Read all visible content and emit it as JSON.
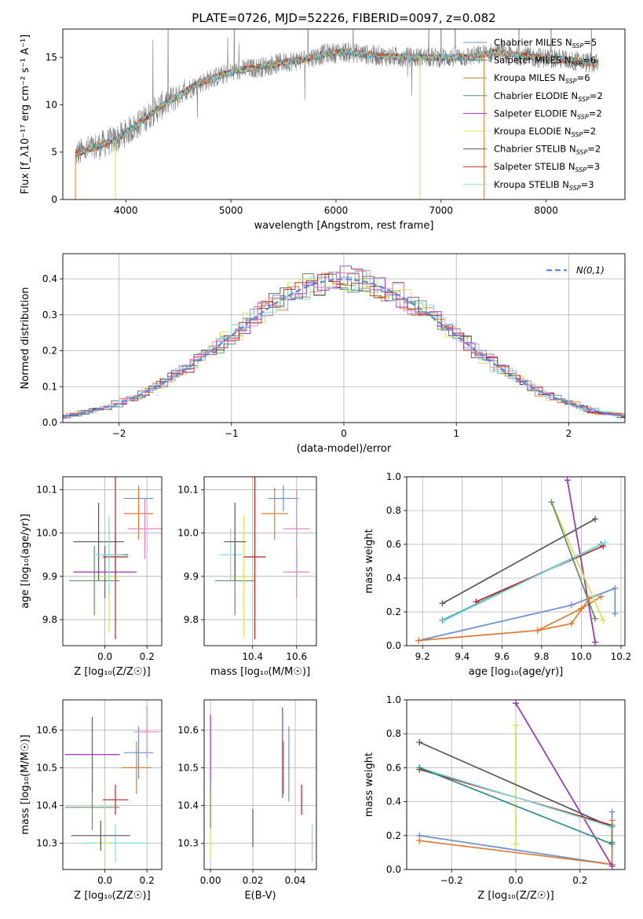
{
  "figure": {
    "title": "PLATE=0726, MJD=52226, FIBERID=0097, z=0.082"
  },
  "models": [
    {
      "name": "Chabrier MILES",
      "nssp": 5,
      "color": "#6b8fd6"
    },
    {
      "name": "Salpeter MILES",
      "nssp": 6,
      "color": "#2e8b8b"
    },
    {
      "name": "Kroupa MILES",
      "nssp": 6,
      "color": "#e07b2e"
    },
    {
      "name": "Chabrier ELODIE",
      "nssp": 2,
      "color": "#5f8f5f"
    },
    {
      "name": "Salpeter ELODIE",
      "nssp": 2,
      "color": "#9933bb"
    },
    {
      "name": "Kroupa ELODIE",
      "nssp": 2,
      "color": "#d4e05a"
    },
    {
      "name": "Chabrier STELIB",
      "nssp": 2,
      "color": "#555555"
    },
    {
      "name": "Salpeter STELIB",
      "nssp": 3,
      "color": "#b22222"
    },
    {
      "name": "Kroupa STELIB",
      "nssp": 3,
      "color": "#7fdde0"
    }
  ],
  "chart_data": [
    {
      "id": "spectrum",
      "type": "line",
      "title": "PLATE=0726, MJD=52226, FIBERID=0097, z=0.082",
      "xlabel": "wavelength [Angstrom, rest frame]",
      "ylabel": "Flux [f_λ10⁻¹⁷ erg cm⁻² s⁻¹ A⁻¹]",
      "xlim": [
        3400,
        8750
      ],
      "ylim": [
        0,
        18
      ],
      "xticks": [
        4000,
        5000,
        6000,
        7000,
        8000
      ],
      "yticks": [
        0,
        5,
        10,
        15
      ],
      "grid": false,
      "legend": "top-right",
      "continuum": {
        "x": [
          3520,
          3700,
          3900,
          4100,
          4300,
          4500,
          4700,
          4900,
          5100,
          5300,
          5500,
          5700,
          5900,
          6100,
          6300,
          6500,
          6700,
          6900,
          7100,
          7300,
          7500,
          7700,
          7900,
          8100,
          8300,
          8500
        ],
        "y": [
          4.8,
          5.5,
          6.3,
          7.8,
          9.6,
          11.0,
          12.3,
          13.1,
          13.7,
          14.0,
          14.5,
          14.8,
          15.4,
          15.6,
          15.3,
          15.1,
          15.0,
          15.0,
          15.0,
          15.1,
          15.5,
          15.3,
          15.0,
          14.9,
          14.6,
          14.3
        ]
      }
    },
    {
      "id": "residuals",
      "type": "histogram",
      "xlabel": "(data-model)/error",
      "ylabel": "Normed distribution",
      "xlim": [
        -2.5,
        2.5
      ],
      "ylim": [
        0,
        0.47
      ],
      "xticks": [
        -2,
        -1,
        0,
        1,
        2
      ],
      "yticks": [
        0.0,
        0.1,
        0.2,
        0.3,
        0.4
      ],
      "grid": true,
      "legend": "top-right",
      "legend_label": "N(0,1)",
      "bin_edges": [
        -2.5,
        2.5
      ],
      "bin_width": 0.1,
      "normal_curve_color": "#5b86d9"
    },
    {
      "id": "age-vs-Z",
      "type": "errorbar",
      "xlabel": "Z [log₁₀(Z/Z☉)]",
      "ylabel": "age  [log₁₀(age/yr)]",
      "xlim": [
        -0.2,
        0.27
      ],
      "ylim": [
        9.74,
        10.13
      ],
      "xticks": [
        0.0,
        0.2
      ],
      "yticks": [
        9.8,
        9.9,
        10.0,
        10.1
      ],
      "grid": true,
      "points": [
        {
          "x": 0.16,
          "y": 10.08,
          "xerr": 0.07,
          "yerr": 0.03,
          "model": 0
        },
        {
          "x": 0.05,
          "y": 9.95,
          "xerr": 0.06,
          "yerr": 0.05,
          "model": 1
        },
        {
          "x": 0.16,
          "y": 10.045,
          "xerr": 0.07,
          "yerr": 0.06,
          "model": 2
        },
        {
          "x": -0.05,
          "y": 9.89,
          "xerr": 0.12,
          "yerr": 0.08,
          "model": 3
        },
        {
          "x": 0.0,
          "y": 9.91,
          "xerr": 0.15,
          "yerr": 0.06,
          "model": 4
        },
        {
          "x": 0.02,
          "y": 9.9,
          "xerr": 0.06,
          "yerr": 0.13,
          "model": 5
        },
        {
          "x": -0.03,
          "y": 9.98,
          "xerr": 0.12,
          "yerr": 0.09,
          "model": 6
        },
        {
          "x": 0.05,
          "y": 9.945,
          "xerr": 0.06,
          "yerr": 0.19,
          "model": 7
        },
        {
          "x": 0.02,
          "y": 9.95,
          "xerr": 0.07,
          "yerr": 0.09,
          "model": 8
        },
        {
          "x": 0.19,
          "y": 10.01,
          "xerr": 0.08,
          "yerr": 0.07,
          "model": 4
        }
      ]
    },
    {
      "id": "age-vs-mass",
      "type": "errorbar",
      "xlabel": "mass [log₁₀(M/M☉)]",
      "ylabel": "",
      "xlim": [
        10.18,
        10.69
      ],
      "ylim": [
        9.74,
        10.13
      ],
      "xticks": [
        10.4,
        10.6
      ],
      "yticks": [
        9.8,
        9.9,
        10.0,
        10.1
      ],
      "grid": true,
      "points": [
        {
          "x": 10.54,
          "y": 10.08,
          "xerr": 0.07,
          "yerr": 0.03,
          "model": 0
        },
        {
          "x": 10.3,
          "y": 9.95,
          "xerr": 0.05,
          "yerr": 0.06,
          "model": 8
        },
        {
          "x": 10.5,
          "y": 10.045,
          "xerr": 0.06,
          "yerr": 0.06,
          "model": 2
        },
        {
          "x": 10.32,
          "y": 9.89,
          "xerr": 0.09,
          "yerr": 0.08,
          "model": 3
        },
        {
          "x": 10.6,
          "y": 9.91,
          "xerr": 0.06,
          "yerr": 0.06,
          "model": 4
        },
        {
          "x": 10.36,
          "y": 9.9,
          "xerr": 0.05,
          "yerr": 0.14,
          "model": 5
        },
        {
          "x": 10.32,
          "y": 9.98,
          "xerr": 0.05,
          "yerr": 0.09,
          "model": 6
        },
        {
          "x": 10.41,
          "y": 9.945,
          "xerr": 0.05,
          "yerr": 0.19,
          "model": 7
        },
        {
          "x": 10.6,
          "y": 10.01,
          "xerr": 0.06,
          "yerr": 0.09,
          "model": 4
        }
      ]
    },
    {
      "id": "weight-vs-age",
      "type": "line",
      "xlabel": "age  [log₁₀(age/yr)]",
      "ylabel": "mass weight",
      "xlim": [
        9.12,
        10.22
      ],
      "ylim": [
        0,
        1.0
      ],
      "xticks": [
        9.2,
        9.4,
        9.6,
        9.8,
        10.0,
        10.2
      ],
      "yticks": [
        0.0,
        0.2,
        0.4,
        0.6,
        0.8,
        1.0
      ],
      "grid": true,
      "series": [
        {
          "model": 0,
          "x": [
            9.18,
            9.95,
            10.17,
            10.17
          ],
          "y": [
            0.03,
            0.24,
            0.34,
            0.19
          ]
        },
        {
          "model": 1,
          "x": [
            9.3,
            10.1
          ],
          "y": [
            0.15,
            0.6
          ]
        },
        {
          "model": 2,
          "x": [
            9.18,
            9.78,
            10.0,
            10.1
          ],
          "y": [
            0.03,
            0.09,
            0.22,
            0.29
          ]
        },
        {
          "model": 4,
          "x": [
            9.93,
            10.07
          ],
          "y": [
            0.98,
            0.02
          ]
        },
        {
          "model": 5,
          "x": [
            9.85,
            10.11
          ],
          "y": [
            0.85,
            0.15
          ]
        },
        {
          "model": 6,
          "x": [
            9.3,
            10.07
          ],
          "y": [
            0.25,
            0.75
          ]
        },
        {
          "model": 7,
          "x": [
            9.47,
            10.11
          ],
          "y": [
            0.26,
            0.59
          ]
        },
        {
          "model": 8,
          "x": [
            9.31,
            10.12
          ],
          "y": [
            0.15,
            0.61
          ]
        },
        {
          "model": 3,
          "x": [
            9.85,
            10.07
          ],
          "y": [
            0.85,
            0.16
          ]
        },
        {
          "model": 2,
          "x": [
            9.78,
            9.95,
            10.04
          ],
          "y": [
            0.09,
            0.13,
            0.28
          ]
        }
      ]
    },
    {
      "id": "mass-vs-Z",
      "type": "errorbar",
      "xlabel": "Z [log₁₀(Z/Z☉)]",
      "ylabel": "mass [log₁₀(M/M☉)]",
      "xlim": [
        -0.2,
        0.27
      ],
      "ylim": [
        10.23,
        10.68
      ],
      "xticks": [
        0.0,
        0.2
      ],
      "yticks": [
        10.3,
        10.4,
        10.5,
        10.6
      ],
      "grid": true,
      "points": [
        {
          "x": 0.16,
          "y": 10.54,
          "xerr": 0.07,
          "yerr": 0.07,
          "model": 0
        },
        {
          "x": 0.05,
          "y": 10.3,
          "xerr": 0.15,
          "yerr": 0.05,
          "model": 8
        },
        {
          "x": 0.15,
          "y": 10.5,
          "xerr": 0.07,
          "yerr": 0.07,
          "model": 2
        },
        {
          "x": -0.06,
          "y": 10.395,
          "xerr": 0.13,
          "yerr": 0.06,
          "model": 3
        },
        {
          "x": -0.06,
          "y": 10.535,
          "xerr": 0.13,
          "yerr": 0.1,
          "model": 4
        },
        {
          "x": 0.0,
          "y": 10.3,
          "xerr": 0.03,
          "yerr": 0.16,
          "model": 5
        },
        {
          "x": -0.02,
          "y": 10.32,
          "xerr": 0.14,
          "yerr": 0.04,
          "model": 6
        },
        {
          "x": 0.05,
          "y": 10.415,
          "xerr": 0.06,
          "yerr": 0.04,
          "model": 7
        },
        {
          "x": 0.2,
          "y": 10.595,
          "xerr": 0.06,
          "yerr": 0.07,
          "model": 4
        }
      ]
    },
    {
      "id": "mass-vs-ebv",
      "type": "errorbar",
      "xlabel": "E(B-V)",
      "ylabel": "",
      "xlim": [
        -0.003,
        0.05
      ],
      "ylim": [
        10.23,
        10.68
      ],
      "xticks": [
        0.0,
        0.02,
        0.04
      ],
      "yticks": [
        10.3,
        10.4,
        10.5,
        10.6
      ],
      "grid": true,
      "points": [
        {
          "x": 0.0,
          "y": 10.54,
          "xerr": 0,
          "yerr": 0.1,
          "model": 4
        },
        {
          "x": 0.0,
          "y": 10.35,
          "xerr": 0,
          "yerr": 0.09,
          "model": 5
        },
        {
          "x": 0.0,
          "y": 10.4,
          "xerr": 0,
          "yerr": 0.06,
          "model": 3
        },
        {
          "x": 0.02,
          "y": 10.34,
          "xerr": 0,
          "yerr": 0.05,
          "model": 6
        },
        {
          "x": 0.034,
          "y": 10.54,
          "xerr": 0,
          "yerr": 0.12,
          "model": 4
        },
        {
          "x": 0.0345,
          "y": 10.5,
          "xerr": 0,
          "yerr": 0.07,
          "model": 2
        },
        {
          "x": 0.037,
          "y": 10.51,
          "xerr": 0,
          "yerr": 0.1,
          "model": 0
        },
        {
          "x": 0.043,
          "y": 10.415,
          "xerr": 0,
          "yerr": 0.04,
          "model": 7
        },
        {
          "x": 0.048,
          "y": 10.3,
          "xerr": 0,
          "yerr": 0.05,
          "model": 8
        }
      ]
    },
    {
      "id": "weight-vs-Z",
      "type": "line",
      "xlabel": "Z [log₁₀(Z/Z☉)]",
      "ylabel": "mass weight",
      "xlim": [
        -0.34,
        0.34
      ],
      "ylim": [
        0,
        1.0
      ],
      "xticks": [
        -0.2,
        0.0,
        0.2
      ],
      "yticks": [
        0.0,
        0.2,
        0.4,
        0.6,
        0.8,
        1.0
      ],
      "grid": true,
      "series": [
        {
          "model": 0,
          "x": [
            -0.3,
            0.3,
            0.3
          ],
          "y": [
            0.2,
            0.03,
            0.34
          ]
        },
        {
          "model": 2,
          "x": [
            -0.3,
            0.3,
            0.3
          ],
          "y": [
            0.17,
            0.03,
            0.29
          ]
        },
        {
          "model": 4,
          "x": [
            0.0,
            0.3
          ],
          "y": [
            0.98,
            0.02
          ]
        },
        {
          "model": 5,
          "x": [
            0.0,
            0.0
          ],
          "y": [
            0.85,
            0.15
          ]
        },
        {
          "model": 6,
          "x": [
            -0.3,
            0.3
          ],
          "y": [
            0.75,
            0.25
          ]
        },
        {
          "model": 7,
          "x": [
            -0.3,
            0.3
          ],
          "y": [
            0.59,
            0.26
          ]
        },
        {
          "model": 8,
          "x": [
            -0.3,
            0.3
          ],
          "y": [
            0.6,
            0.25
          ]
        },
        {
          "model": 3,
          "x": [
            0.3,
            0.3
          ],
          "y": [
            0.16,
            0.26
          ]
        },
        {
          "model": 1,
          "x": [
            -0.3,
            0.3
          ],
          "y": [
            0.6,
            0.15
          ]
        }
      ]
    }
  ]
}
